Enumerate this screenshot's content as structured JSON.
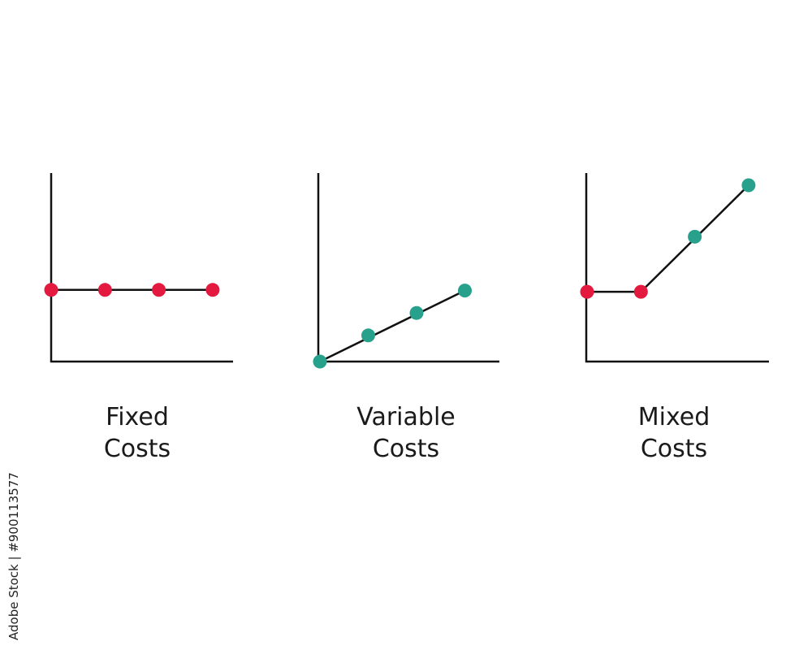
{
  "chart_data": [
    {
      "type": "line",
      "title_lines": [
        "Fixed",
        "Costs"
      ],
      "xlim": [
        0,
        3.4
      ],
      "ylim": [
        0,
        10
      ],
      "points": [
        {
          "x": 0,
          "y": 6.3,
          "color": "#e4193f"
        },
        {
          "x": 1,
          "y": 6.3,
          "color": "#e4193f"
        },
        {
          "x": 2,
          "y": 6.3,
          "color": "#e4193f"
        },
        {
          "x": 3,
          "y": 6.3,
          "color": "#e4193f"
        }
      ],
      "segments": [
        [
          0,
          6.3,
          3,
          6.3
        ]
      ]
    },
    {
      "type": "line",
      "title_lines": [
        "Variable",
        "Costs"
      ],
      "xlim": [
        0,
        3.4
      ],
      "ylim": [
        0,
        10
      ],
      "points": [
        {
          "x": 0,
          "y": 0,
          "color": "#27a08c"
        },
        {
          "x": 1,
          "y": 1.4,
          "color": "#27a08c"
        },
        {
          "x": 2,
          "y": 2.6,
          "color": "#27a08c"
        },
        {
          "x": 3,
          "y": 3.8,
          "color": "#27a08c"
        }
      ],
      "segments": [
        [
          0,
          0,
          3,
          3.8
        ]
      ]
    },
    {
      "type": "line",
      "title_lines": [
        "Mixed",
        "Costs"
      ],
      "xlim": [
        0,
        3.4
      ],
      "ylim": [
        0,
        10
      ],
      "points": [
        {
          "x": 0,
          "y": 3.8,
          "color": "#e4193f"
        },
        {
          "x": 1,
          "y": 3.8,
          "color": "#e4193f"
        },
        {
          "x": 2,
          "y": 6.8,
          "color": "#27a08c"
        },
        {
          "x": 3,
          "y": 9.6,
          "color": "#27a08c"
        }
      ],
      "segments": [
        [
          0,
          3.8,
          1,
          3.8
        ],
        [
          1,
          3.8,
          3,
          9.6
        ]
      ]
    }
  ],
  "watermark": {
    "id_text": "Adobe Stock | #900113577"
  },
  "colors": {
    "axis": "#111111",
    "red": "#e4193f",
    "green": "#27a08c"
  }
}
